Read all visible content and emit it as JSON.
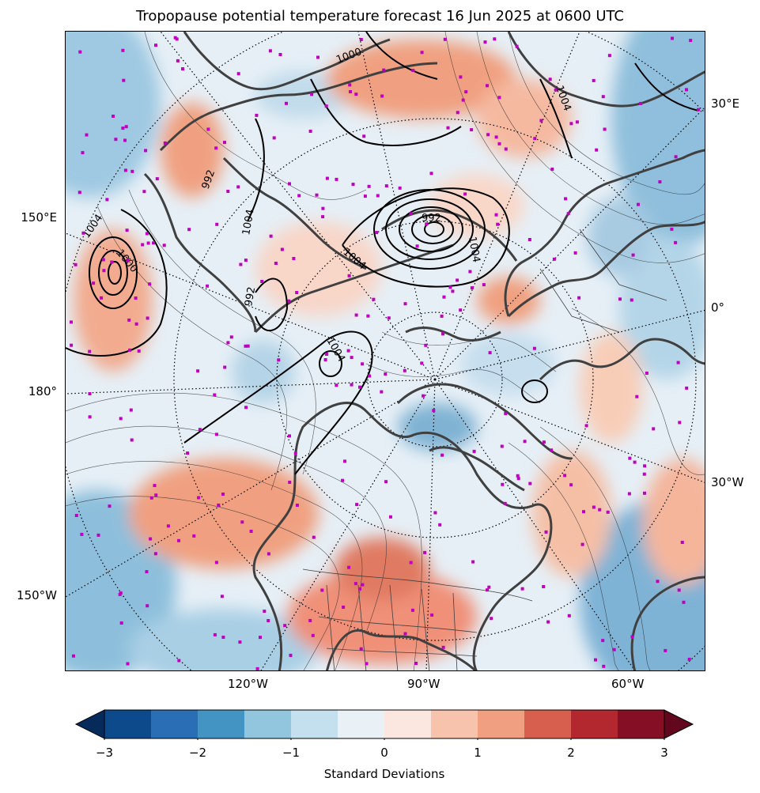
{
  "title": "Tropopause potential temperature forecast 16 Jun 2025 at 0600 UTC",
  "axis_labels": {
    "bottom": [
      "120°W",
      "90°W",
      "60°W"
    ],
    "left": [
      "150°E",
      "180°",
      "150°W"
    ],
    "right": [
      "30°E",
      "0°",
      "30°W"
    ]
  },
  "contour_labels": [
    "1004",
    "1000",
    "992",
    "1004",
    "1000",
    "1004",
    "992",
    "1004",
    "1004",
    "992",
    "1004"
  ],
  "colorbar": {
    "label": "Standard Deviations",
    "min": -3,
    "max": 3,
    "step": 0.5,
    "ticks": [
      "−3",
      "−2",
      "−1",
      "0",
      "1",
      "2",
      "3"
    ],
    "colors": [
      "#0d4a8c",
      "#2a6fb5",
      "#4393c3",
      "#92c5de",
      "#c4dfee",
      "#e9f1f7",
      "#fbe6e0",
      "#f7c3ad",
      "#f0a080",
      "#d6604d",
      "#b2282e",
      "#850f24"
    ],
    "under_color": "#062a5a",
    "over_color": "#62071d"
  },
  "colors": {
    "coast": "#404040",
    "station": "#c000c0",
    "pressure_contour": "#000000",
    "theta_contour": "#303030"
  }
}
